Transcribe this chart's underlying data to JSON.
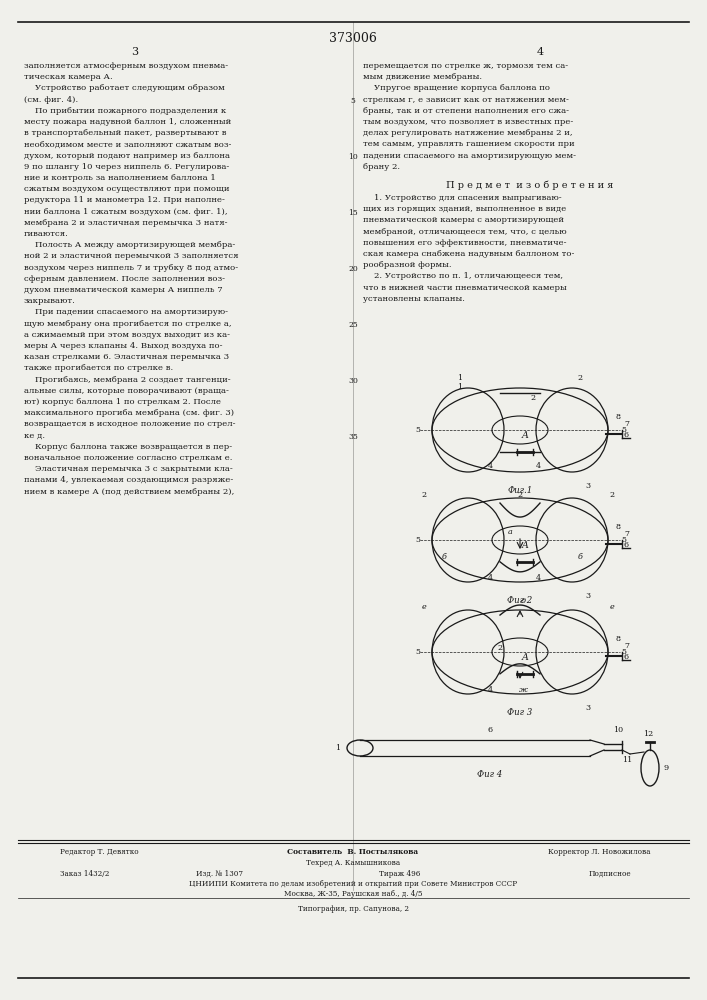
{
  "patent_number": "373006",
  "col_numbers": [
    "3",
    "4"
  ],
  "col3_text": [
    "заполняется атмосферным воздухом пневма-",
    "тическая камера А.",
    "    Устройство работает следующим образом",
    "(см. фиг. 4).",
    "    По прибытии пожарного подразделения к",
    "месту пожара надувной баллон 1, сложенный",
    "в транспортабельный пакет, развертывают в",
    "необходимом месте и заполняют сжатым воз-",
    "духом, который подают например из баллона",
    "9 по шлангу 10 через ниппель 6. Регулирова-",
    "ние и контроль за наполнением баллона 1",
    "сжатым воздухом осуществляют при помощи",
    "редуктора 11 и манометра 12. При наполне-",
    "нии баллона 1 сжатым воздухом (см. фиг. 1),",
    "мембрана 2 и эластичная перемычка 3 натя-",
    "гиваются.",
    "    Полость А между амортизирующей мембра-",
    "ной 2 и эластичной перемычкой 3 заполняется",
    "воздухом через ниппель 7 и трубку 8 под атмо-",
    "сферным давлением. После заполнения воз-",
    "духом пневматической камеры А ниппель 7",
    "закрывают.",
    "    При падении спасаемого на амортизирую-",
    "щую мембрану она прогибается по стрелке а,",
    "а сжимаемый при этом воздух выходит из ка-",
    "меры А через клапаны 4. Выход воздуха по-",
    "казан стрелками 6. Эластичная перемычка 3",
    "также прогибается по стрелке в.",
    "    Прогибаясь, мембрана 2 создает тангенци-",
    "альные силы, которые поворачивают (враща-",
    "ют) корпус баллона 1 по стрелкам 2. После",
    "максимального прогиба мембрана (см. фиг. 3)",
    "возвращается в исходное положение по стрел-",
    "ке д.",
    "    Корпус баллона также возвращается в пер-",
    "воначальное положение согласно стрелкам е.",
    "    Эластичная перемычка 3 с закрытыми кла-",
    "панами 4, увлекаемая создающимся разряже-",
    "нием в камере А (под действием мембраны 2),"
  ],
  "col4_text_top": [
    "перемещается по стрелке ж, тормозя тем са-",
    "мым движение мембраны.",
    "    Упругое вращение корпуса баллона по",
    "стрелкам г, е зависит как от натяжения мем-",
    "браны, так и от степени наполнения его сжа-",
    "тым воздухом, что позволяет в известных пре-",
    "делах регулировать натяжение мембраны 2 и,",
    "тем самым, управлять гашением скорости при",
    "падении спасаемого на амортизирующую мем-",
    "брану 2."
  ],
  "predmet_title": "П р е д м е т  и з о б р е т е н и я",
  "predmet_text": [
    "    1. Устройство для спасения выпрыгиваю-",
    "щих из горящих зданий, выполненное в виде",
    "пневматической камеры с амортизирующей",
    "мембраной, отличающееся тем, что, с целью",
    "повышения его эффективности, пневматиче-",
    "ская камера снабжена надувным баллоном то-",
    "рообразной формы.",
    "    2. Устройство по п. 1, отличающееся тем,",
    "что в нижней части пневматической камеры",
    "установлены клапаны."
  ],
  "editor_line": "Редактор Т. Девятко",
  "composer_bold": "Составитель  В. Постылякова",
  "corrector_line": "Корректор Л. Новожилова",
  "techred_line": "Техред А. Камышникова",
  "order_label": "Заказ 1432/2",
  "izdanie_label": "Изд. № 1307",
  "tirazh_label": "Тираж 496",
  "podpisnoe_label": "Подписное",
  "org_line": "ЦНИИПИ Комитета по делам изобретений и открытий при Совете Министров СССР",
  "addr_line": "Москва, Ж-35, Раушская наб., д. 4/5",
  "print_line": "Типография, пр. Сапунова, 2",
  "bg_color": "#f0f0eb",
  "text_color": "#1a1a1a",
  "line_numbers": [
    "5",
    "10",
    "15",
    "20",
    "25",
    "30",
    "35"
  ]
}
